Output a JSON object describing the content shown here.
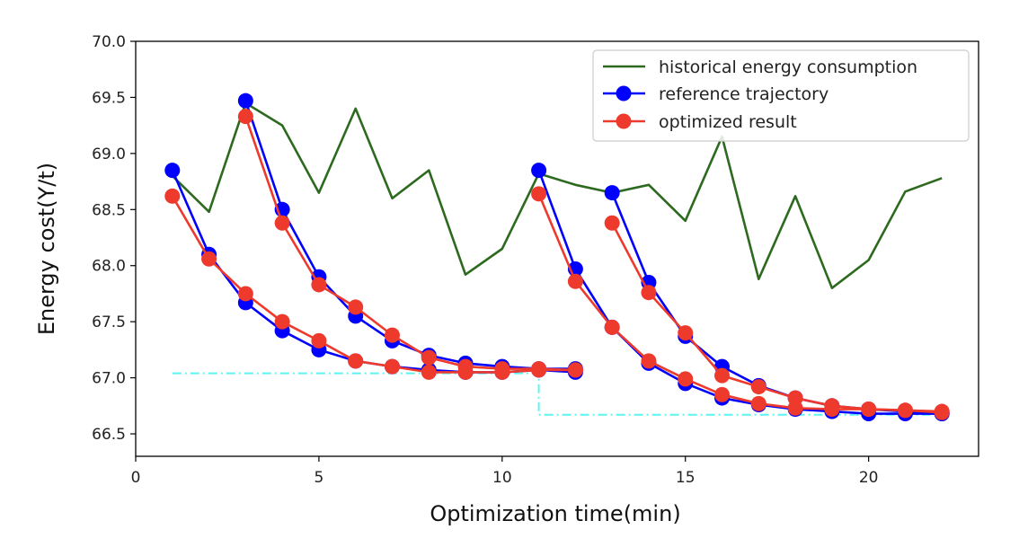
{
  "chart_data": {
    "type": "line",
    "title": "",
    "xlabel": "Optimization time(min)",
    "ylabel": "Energy cost(Y/t)",
    "xlim": [
      0,
      23
    ],
    "ylim": [
      66.3,
      70.0
    ],
    "xticks": [
      0,
      5,
      10,
      15,
      20
    ],
    "yticks": [
      66.5,
      67.0,
      67.5,
      68.0,
      68.5,
      69.0,
      69.5,
      70.0
    ],
    "xtick_labels": [
      "0",
      "5",
      "10",
      "15",
      "20"
    ],
    "ytick_labels": [
      "66.5",
      "67.0",
      "67.5",
      "68.0",
      "68.5",
      "69.0",
      "69.5",
      "70.0"
    ],
    "grid": false,
    "legend_position": "top-right",
    "legend": [
      "historical energy consumption",
      "reference trajectory",
      "optimized result"
    ],
    "series": [
      {
        "name": "historical energy consumption",
        "color": "#2d6a1f",
        "marker": false,
        "segments": [
          {
            "x": [
              1,
              2,
              3,
              4,
              5,
              6,
              7,
              8,
              9,
              10,
              11,
              12,
              13,
              14,
              15,
              16,
              17,
              18,
              19,
              20,
              21,
              22
            ],
            "y": [
              68.8,
              68.48,
              69.45,
              69.25,
              68.65,
              69.4,
              68.6,
              68.85,
              67.92,
              68.15,
              68.82,
              68.72,
              68.65,
              68.72,
              68.4,
              69.15,
              67.88,
              68.62,
              67.8,
              68.05,
              68.66,
              68.78
            ]
          }
        ]
      },
      {
        "name": "reference trajectory",
        "color": "#0000ff",
        "marker": true,
        "segments": [
          {
            "x": [
              1,
              2,
              3,
              4,
              5,
              6,
              7,
              8,
              9,
              10,
              11,
              12
            ],
            "y": [
              68.85,
              68.1,
              67.67,
              67.42,
              67.25,
              67.15,
              67.1,
              67.07,
              67.05,
              67.05,
              67.07,
              67.05
            ]
          },
          {
            "x": [
              3,
              4,
              5,
              6,
              7,
              8,
              9,
              10,
              11,
              12
            ],
            "y": [
              69.47,
              68.5,
              67.9,
              67.55,
              67.33,
              67.2,
              67.13,
              67.1,
              67.08,
              67.08
            ]
          },
          {
            "x": [
              11,
              12,
              13,
              14,
              15,
              16,
              17,
              18,
              19,
              20,
              21,
              22
            ],
            "y": [
              68.85,
              67.97,
              67.45,
              67.13,
              66.95,
              66.82,
              66.76,
              66.72,
              66.7,
              66.68,
              66.68,
              66.68
            ]
          },
          {
            "x": [
              13,
              14,
              15,
              16,
              17,
              18,
              19,
              20,
              21,
              22
            ],
            "y": [
              68.65,
              67.85,
              67.37,
              67.1,
              66.93,
              66.82,
              66.75,
              66.72,
              66.7,
              66.68
            ]
          }
        ]
      },
      {
        "name": "optimized result",
        "color": "#ee3a2c",
        "marker": true,
        "segments": [
          {
            "x": [
              1,
              2,
              3,
              4,
              5,
              6,
              7,
              8,
              9,
              10,
              11,
              12
            ],
            "y": [
              68.62,
              68.06,
              67.75,
              67.5,
              67.33,
              67.15,
              67.1,
              67.05,
              67.05,
              67.05,
              67.07,
              67.07
            ]
          },
          {
            "x": [
              3,
              4,
              5,
              6,
              7,
              8,
              9,
              10,
              11,
              12
            ],
            "y": [
              69.33,
              68.38,
              67.83,
              67.63,
              67.38,
              67.18,
              67.1,
              67.08,
              67.08,
              67.07
            ]
          },
          {
            "x": [
              11,
              12,
              13,
              14,
              15,
              16,
              17,
              18,
              19,
              20,
              21,
              22
            ],
            "y": [
              68.64,
              67.86,
              67.45,
              67.15,
              66.99,
              66.85,
              66.77,
              66.73,
              66.72,
              66.72,
              66.71,
              66.69
            ]
          },
          {
            "x": [
              13,
              14,
              15,
              16,
              17,
              18,
              19,
              20,
              21,
              22
            ],
            "y": [
              68.38,
              67.76,
              67.4,
              67.02,
              66.92,
              66.82,
              66.75,
              66.72,
              66.71,
              66.7
            ]
          }
        ]
      },
      {
        "name": "threshold",
        "color": "#5ef3f0",
        "marker": false,
        "dashed": true,
        "segments": [
          {
            "x": [
              1,
              11,
              11,
              22
            ],
            "y": [
              67.04,
              67.04,
              66.67,
              66.67
            ]
          }
        ]
      }
    ]
  }
}
